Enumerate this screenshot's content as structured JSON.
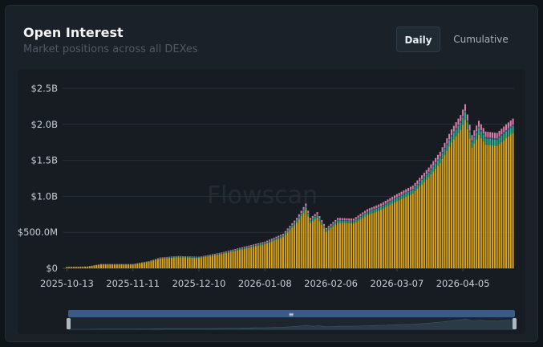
{
  "header": {
    "title": "Open Interest",
    "subtitle": "Market positions across all DEXes"
  },
  "tabs": [
    {
      "label": "Daily",
      "active": true
    },
    {
      "label": "Cumulative",
      "active": false
    }
  ],
  "watermark": "Flowscan",
  "colors": {
    "gold": "#d9a21b",
    "teal": "#2fae8e",
    "blue": "#3a6ea8",
    "pink": "#e07aa8",
    "grid": "#263039",
    "axis": "#3a4652"
  },
  "chart_data": {
    "type": "bar",
    "stacked": true,
    "title": "Open Interest",
    "xlabel": "",
    "ylabel": "",
    "ylim": [
      0,
      2500000000
    ],
    "y_ticks": [
      "$0",
      "$500.0M",
      "$1.0B",
      "$1.5B",
      "$2.0B",
      "$2.5B"
    ],
    "x_ticks": [
      "2025-10-13",
      "2025-11-11",
      "2025-12-10",
      "2026-01-08",
      "2026-02-06",
      "2026-03-07",
      "2026-04-05"
    ],
    "grid": true,
    "x_start": "2025-10-13",
    "x_end": "2026-04-27",
    "total_anchors": [
      [
        "2025-10-13",
        20000000
      ],
      [
        "2025-10-22",
        25000000
      ],
      [
        "2025-10-28",
        60000000
      ],
      [
        "2025-11-03",
        60000000
      ],
      [
        "2025-11-11",
        60000000
      ],
      [
        "2025-11-18",
        100000000
      ],
      [
        "2025-11-23",
        150000000
      ],
      [
        "2025-12-01",
        170000000
      ],
      [
        "2025-12-10",
        160000000
      ],
      [
        "2025-12-20",
        220000000
      ],
      [
        "2025-12-30",
        300000000
      ],
      [
        "2026-01-08",
        370000000
      ],
      [
        "2026-01-16",
        480000000
      ],
      [
        "2026-01-22",
        700000000
      ],
      [
        "2026-01-26",
        900000000
      ],
      [
        "2026-01-28",
        700000000
      ],
      [
        "2026-01-31",
        780000000
      ],
      [
        "2026-02-04",
        560000000
      ],
      [
        "2026-02-09",
        700000000
      ],
      [
        "2026-02-16",
        690000000
      ],
      [
        "2026-02-22",
        820000000
      ],
      [
        "2026-02-28",
        900000000
      ],
      [
        "2026-03-07",
        1030000000
      ],
      [
        "2026-03-14",
        1150000000
      ],
      [
        "2026-03-21",
        1400000000
      ],
      [
        "2026-03-26",
        1620000000
      ],
      [
        "2026-03-31",
        1930000000
      ],
      [
        "2026-04-04",
        2130000000
      ],
      [
        "2026-04-06",
        2280000000
      ],
      [
        "2026-04-09",
        1850000000
      ],
      [
        "2026-04-12",
        2050000000
      ],
      [
        "2026-04-15",
        1900000000
      ],
      [
        "2026-04-20",
        1880000000
      ],
      [
        "2026-04-24",
        2000000000
      ],
      [
        "2026-04-27",
        2080000000
      ]
    ],
    "series": [
      {
        "name": "",
        "share": 0.905,
        "color": "#d9a21b"
      },
      {
        "name": "",
        "share": 0.045,
        "color": "#2fae8e"
      },
      {
        "name": "",
        "share": 0.01,
        "color": "#3a6ea8"
      },
      {
        "name": "",
        "share": 0.04,
        "color": "#e07aa8"
      }
    ]
  },
  "range_slider": {
    "handle_label": "≡",
    "range": [
      "2025-10-13",
      "2026-04-27"
    ]
  }
}
